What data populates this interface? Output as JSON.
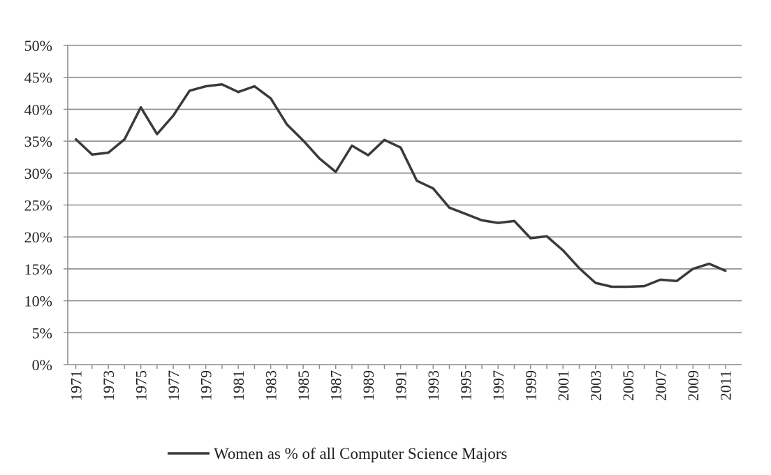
{
  "chart_data": {
    "type": "line",
    "title": "",
    "xlabel": "",
    "ylabel": "",
    "x": [
      1971,
      1972,
      1973,
      1974,
      1975,
      1976,
      1977,
      1978,
      1979,
      1980,
      1981,
      1982,
      1983,
      1984,
      1985,
      1986,
      1987,
      1988,
      1989,
      1990,
      1991,
      1992,
      1993,
      1994,
      1995,
      1996,
      1997,
      1998,
      1999,
      2000,
      2001,
      2002,
      2003,
      2004,
      2005,
      2006,
      2007,
      2008,
      2009,
      2010,
      2011
    ],
    "x_tick_labels": [
      "1971",
      "1973",
      "1975",
      "1977",
      "1979",
      "1981",
      "1983",
      "1985",
      "1987",
      "1989",
      "1991",
      "1993",
      "1995",
      "1997",
      "1999",
      "2001",
      "2003",
      "2005",
      "2007",
      "2009",
      "2011"
    ],
    "x_tick_values": [
      1971,
      1973,
      1975,
      1977,
      1979,
      1981,
      1983,
      1985,
      1987,
      1989,
      1991,
      1993,
      1995,
      1997,
      1999,
      2001,
      2003,
      2005,
      2007,
      2009,
      2011
    ],
    "y_tick_labels": [
      "0%",
      "5%",
      "10%",
      "15%",
      "20%",
      "25%",
      "30%",
      "35%",
      "40%",
      "45%",
      "50%"
    ],
    "y_tick_values": [
      0,
      5,
      10,
      15,
      20,
      25,
      30,
      35,
      40,
      45,
      50
    ],
    "ylim": [
      0,
      50
    ],
    "xlim": [
      1970.5,
      2012
    ],
    "grid": true,
    "legend": "bottom",
    "series": [
      {
        "name": "Women as % of all Computer Science Majors",
        "color": "#3a3a3a",
        "values": [
          35.3,
          32.9,
          33.2,
          35.3,
          40.3,
          36.1,
          39.0,
          42.9,
          43.6,
          43.9,
          42.7,
          43.6,
          41.7,
          37.6,
          35.1,
          32.3,
          30.2,
          34.3,
          32.8,
          35.2,
          34.0,
          28.8,
          27.6,
          24.6,
          23.6,
          22.6,
          22.2,
          22.5,
          19.8,
          20.1,
          17.9,
          15.1,
          12.8,
          12.2,
          12.2,
          12.3,
          13.3,
          13.1,
          15.0,
          15.8,
          14.7
        ]
      }
    ]
  }
}
